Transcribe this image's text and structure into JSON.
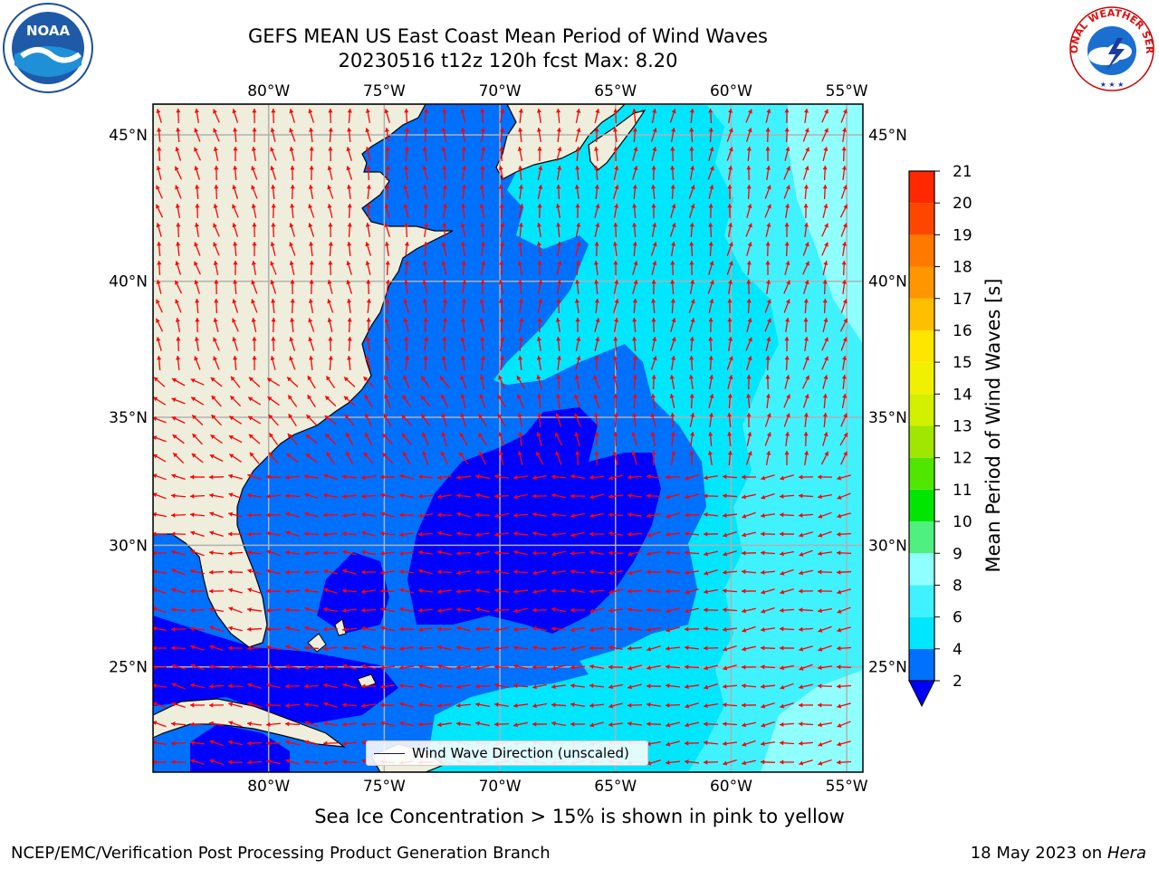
{
  "title_line1": "GEFS MEAN US East Coast Mean Period of Wind Waves",
  "title_line2": "20230516 t12z 120h fcst   Max: 8.20",
  "subtitle": "Sea Ice Concentration > 15% is shown in pink to yellow",
  "footer_left": "NCEP/EMC/Verification Post Processing Product Generation Branch",
  "footer_right_date": "18 May 2023 on",
  "footer_right_machine": "Hera",
  "legend_label": "Wind Wave Direction (unscaled)",
  "colorbar": {
    "label": "Mean Period of Wind Waves [s]",
    "ticks": [
      "2",
      "4",
      "6",
      "8",
      "9",
      "10",
      "11",
      "12",
      "13",
      "14",
      "15",
      "16",
      "17",
      "18",
      "19",
      "20",
      "21"
    ],
    "colors": [
      "#0070ff",
      "#00e6ff",
      "#40f2ff",
      "#90ffff",
      "#50f080",
      "#00e600",
      "#50e600",
      "#a0e600",
      "#d2f000",
      "#f0f000",
      "#ffe600",
      "#ffbe00",
      "#ff9600",
      "#ff7800",
      "#ff4600",
      "#ff2800",
      "#ff0000"
    ],
    "under_color": "#0000ff"
  },
  "map": {
    "lon_labels": [
      "80°W",
      "75°W",
      "70°W",
      "65°W",
      "60°W",
      "55°W"
    ],
    "lat_labels": [
      "45°N",
      "40°N",
      "35°N",
      "30°N",
      "25°N"
    ],
    "lon_values": [
      -80,
      -75,
      -70,
      -65,
      -60,
      -55
    ],
    "lat_values": [
      45,
      40,
      35,
      30,
      25
    ],
    "lon_range": [
      -85,
      -54.3
    ],
    "lat_range": [
      20.5,
      46
    ],
    "land_color": "#efeedc",
    "grid_color": "#b0b0b0",
    "arrow_color": "#ff0000"
  },
  "logos": {
    "left": "NOAA",
    "right": "NATIONAL WEATHER SERVICE"
  }
}
